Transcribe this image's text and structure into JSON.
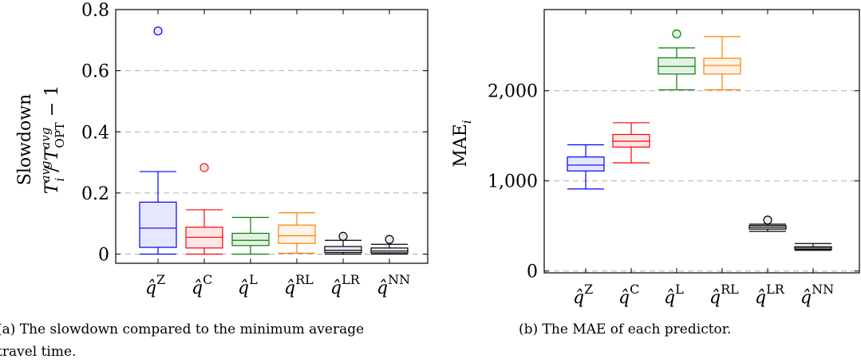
{
  "chart_data": [
    {
      "type": "box",
      "ylabel_line1": "Slowdown",
      "ylabel_line2": "T_i^avg / T_OPT^avg − 1",
      "caption_line1": "(a) The slowdown compared to the minimum average",
      "caption_line2": "travel time.",
      "ylim": [
        -0.03,
        0.8
      ],
      "yticks": [
        0,
        0.2,
        0.4,
        0.6,
        0.8
      ],
      "ytick_labels": [
        "0",
        "0.2",
        "0.4",
        "0.6",
        "0.8"
      ],
      "grid_y": "dashed",
      "categories": [
        {
          "base": "q̂",
          "sup": "Z"
        },
        {
          "base": "q̂",
          "sup": "C"
        },
        {
          "base": "q̂",
          "sup": "L"
        },
        {
          "base": "q̂",
          "sup": "RL"
        },
        {
          "base": "q̂",
          "sup": "LR"
        },
        {
          "base": "q̂",
          "sup": "NN"
        }
      ],
      "boxes": [
        {
          "color": "#0000ff",
          "fill": "#e6e6ff",
          "whislo": 0.0,
          "q1": 0.022,
          "med": 0.085,
          "q3": 0.17,
          "whishi": 0.27,
          "fliers": [
            0.73
          ]
        },
        {
          "color": "#ff0000",
          "fill": "#ffe6e6",
          "whislo": 0.0,
          "q1": 0.02,
          "med": 0.055,
          "q3": 0.088,
          "whishi": 0.145,
          "fliers": [
            0.283
          ]
        },
        {
          "color": "#008000",
          "fill": "#e6f2e6",
          "whislo": 0.0,
          "q1": 0.028,
          "med": 0.045,
          "q3": 0.068,
          "whishi": 0.12,
          "fliers": []
        },
        {
          "color": "#ff8000",
          "fill": "#fff2e6",
          "whislo": 0.003,
          "q1": 0.035,
          "med": 0.06,
          "q3": 0.095,
          "whishi": 0.135,
          "fliers": []
        },
        {
          "color": "#000000",
          "fill": "#e6e6f5",
          "whislo": 0.0,
          "q1": 0.005,
          "med": 0.012,
          "q3": 0.025,
          "whishi": 0.045,
          "fliers": [
            0.058
          ]
        },
        {
          "color": "#000000",
          "fill": "#e6e6f5",
          "whislo": 0.0,
          "q1": 0.004,
          "med": 0.01,
          "q3": 0.02,
          "whishi": 0.032,
          "fliers": [
            0.048
          ]
        }
      ]
    },
    {
      "type": "box",
      "ylabel": "MAE_i",
      "caption_line1": "(b) The MAE of each predictor.",
      "ylim": [
        -20,
        2900
      ],
      "yticks": [
        0,
        1000,
        2000
      ],
      "ytick_labels": [
        "0",
        "1,000",
        "2,000"
      ],
      "grid_y": "dashed",
      "categories": [
        {
          "base": "q̂",
          "sup": "Z"
        },
        {
          "base": "q̂",
          "sup": "C"
        },
        {
          "base": "q̂",
          "sup": "L"
        },
        {
          "base": "q̂",
          "sup": "RL"
        },
        {
          "base": "q̂",
          "sup": "LR"
        },
        {
          "base": "q̂",
          "sup": "NN"
        }
      ],
      "boxes": [
        {
          "color": "#0000ff",
          "fill": "#e6e6ff",
          "whislo": 910,
          "q1": 1110,
          "med": 1175,
          "q3": 1265,
          "whishi": 1400,
          "fliers": []
        },
        {
          "color": "#ff0000",
          "fill": "#ffe6e6",
          "whislo": 1200,
          "q1": 1375,
          "med": 1440,
          "q3": 1515,
          "whishi": 1645,
          "fliers": []
        },
        {
          "color": "#008000",
          "fill": "#e6f2e6",
          "whislo": 2010,
          "q1": 2185,
          "med": 2270,
          "q3": 2365,
          "whishi": 2475,
          "fliers": [
            2630
          ]
        },
        {
          "color": "#ff8000",
          "fill": "#fff2e6",
          "whislo": 2010,
          "q1": 2185,
          "med": 2280,
          "q3": 2360,
          "whishi": 2600,
          "fliers": []
        },
        {
          "color": "#000000",
          "fill": "#e6e6f5",
          "whislo": 440,
          "q1": 465,
          "med": 485,
          "q3": 505,
          "whishi": 520,
          "fliers": [
            565
          ]
        },
        {
          "color": "#000000",
          "fill": "#e6e6f5",
          "whislo": 230,
          "q1": 240,
          "med": 255,
          "q3": 270,
          "whishi": 305,
          "fliers": []
        }
      ]
    }
  ]
}
